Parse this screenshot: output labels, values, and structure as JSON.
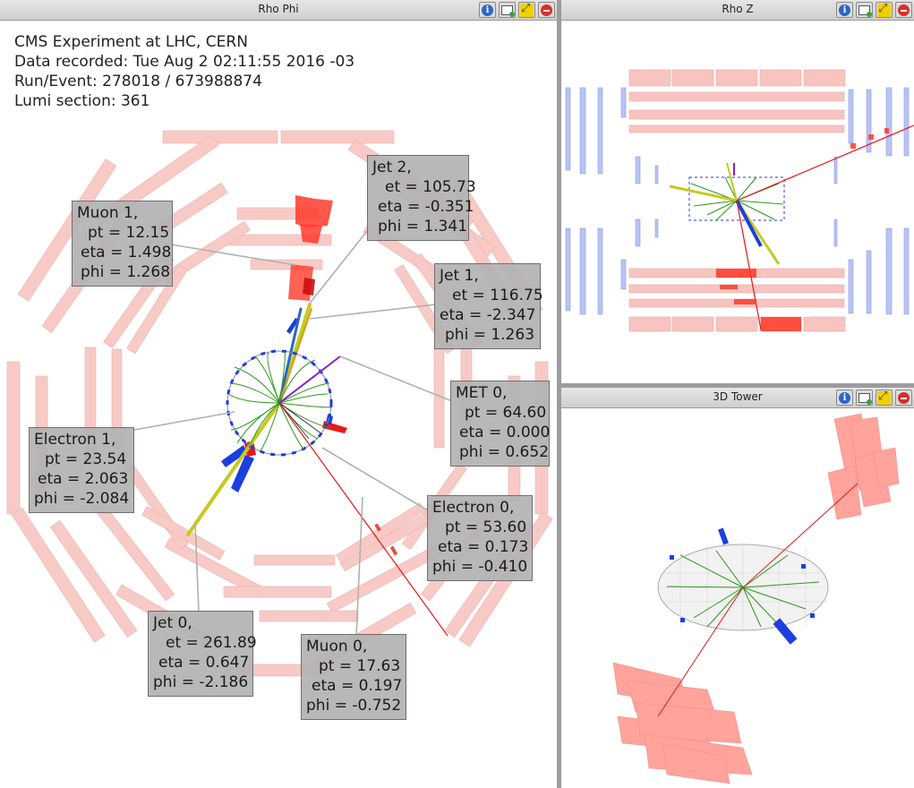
{
  "panels": {
    "rho_phi": {
      "title": "Rho Phi"
    },
    "rho_z": {
      "title": "Rho Z"
    },
    "tower": {
      "title": "3D Tower"
    }
  },
  "event_info": {
    "line1": "CMS Experiment at LHC, CERN",
    "line2": "Data recorded: Tue Aug  2 02:11:55 2016 -03",
    "line3": "Run/Event: 278018 / 673988874",
    "line4": "Lumi section: 361"
  },
  "labels": [
    {
      "id": "jet2",
      "title": "Jet 2,",
      "l1": "et = 105.73",
      "l2": "eta = -0.351",
      "l3": "phi = 1.341"
    },
    {
      "id": "muon1",
      "title": "Muon 1,",
      "l1": "pt = 12.15",
      "l2": "eta = 1.498",
      "l3": "phi = 1.268"
    },
    {
      "id": "jet1",
      "title": "Jet 1,",
      "l1": "et = 116.75",
      "l2": "eta = -2.347",
      "l3": "phi = 1.263"
    },
    {
      "id": "met0",
      "title": "MET 0,",
      "l1": "pt = 64.60",
      "l2": "eta = 0.000",
      "l3": "phi = 0.652"
    },
    {
      "id": "electron1",
      "title": "Electron 1,",
      "l1": "pt = 23.54",
      "l2": "eta = 2.063",
      "l3": "phi = -2.084"
    },
    {
      "id": "electron0",
      "title": "Electron 0,",
      "l1": "pt = 53.60",
      "l2": "eta = 0.173",
      "l3": "phi = -0.410"
    },
    {
      "id": "jet0",
      "title": "Jet 0,",
      "l1": "et = 261.89",
      "l2": "eta = 0.647",
      "l3": "phi = -2.186"
    },
    {
      "id": "muon0",
      "title": "Muon 0,",
      "l1": "pt = 17.63",
      "l2": "eta = 0.197",
      "l3": "phi = -0.752"
    }
  ],
  "icons": [
    "info-icon",
    "save-image-icon",
    "maximize-icon",
    "close-icon"
  ],
  "colors": {
    "muon_chamber": "#f8c4c0",
    "ecal_hit": "#e83020",
    "hcal_hit": "#1c3ee0",
    "track": "#2a9a1a",
    "jet": "#c8c820",
    "rhoz_muon": "#b8c4f4"
  }
}
